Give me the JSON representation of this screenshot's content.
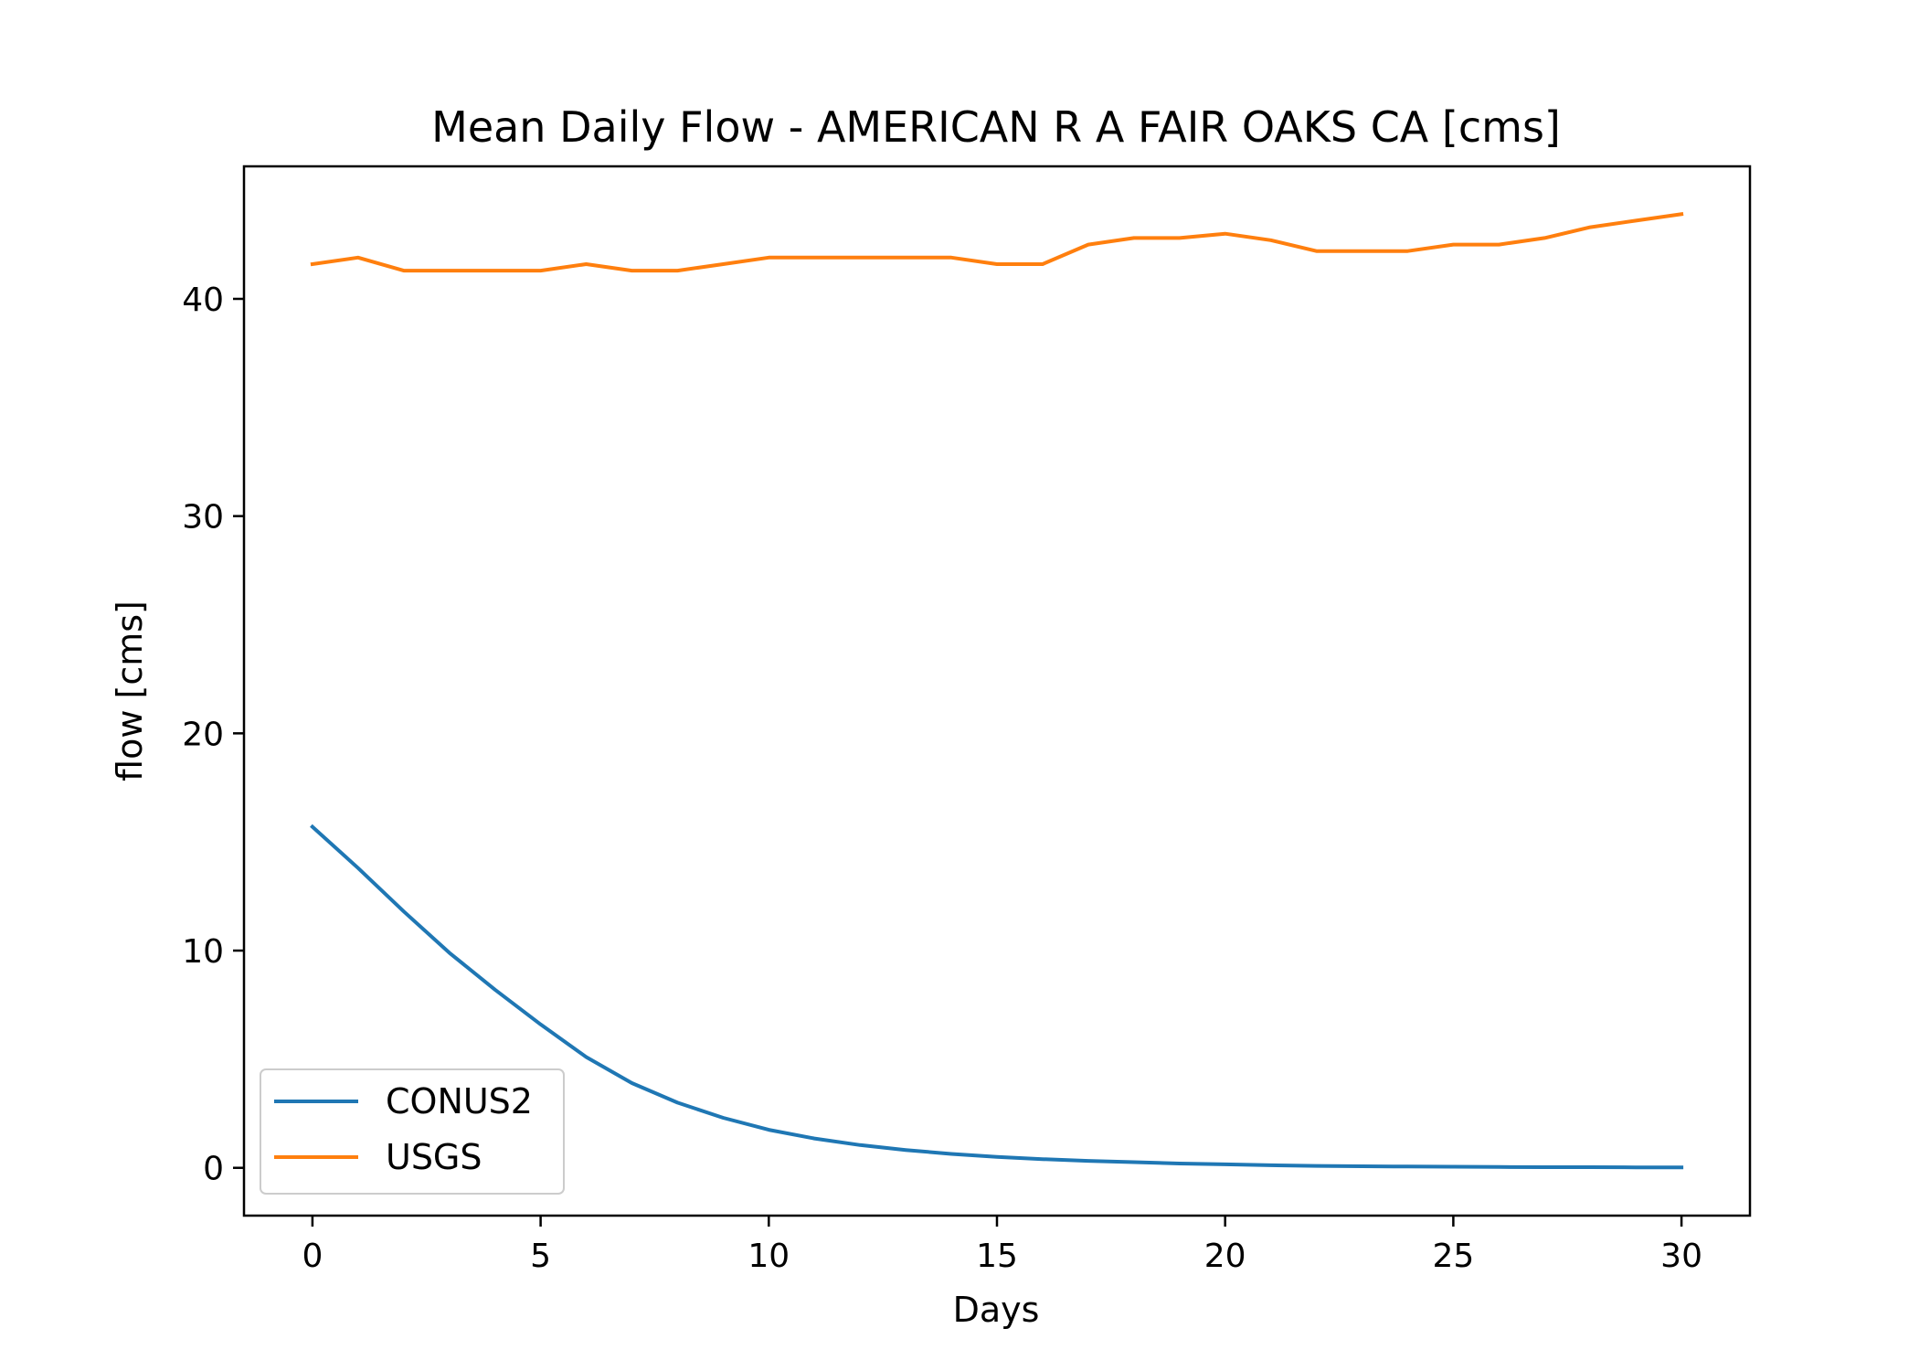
{
  "chart_data": {
    "type": "line",
    "title": "Mean Daily Flow - AMERICAN R A FAIR OAKS CA [cms]",
    "xlabel": "Days",
    "ylabel": "flow [cms]",
    "xlim": [
      -1.5,
      31.5
    ],
    "ylim": [
      -2.2,
      46.1
    ],
    "xticks": [
      0,
      5,
      10,
      15,
      20,
      25,
      30
    ],
    "yticks": [
      0,
      10,
      20,
      30,
      40
    ],
    "grid": false,
    "legend_position": "lower-left",
    "x": [
      0,
      1,
      2,
      3,
      4,
      5,
      6,
      7,
      8,
      9,
      10,
      11,
      12,
      13,
      14,
      15,
      16,
      17,
      18,
      19,
      20,
      21,
      22,
      23,
      24,
      25,
      26,
      27,
      28,
      29,
      30
    ],
    "series": [
      {
        "name": "CONUS2",
        "color": "#1f77b4",
        "values": [
          15.7,
          13.8,
          11.8,
          9.9,
          8.2,
          6.6,
          5.1,
          3.9,
          3.0,
          2.3,
          1.75,
          1.35,
          1.05,
          0.82,
          0.64,
          0.5,
          0.4,
          0.32,
          0.26,
          0.2,
          0.16,
          0.12,
          0.09,
          0.07,
          0.06,
          0.05,
          0.04,
          0.03,
          0.03,
          0.02,
          0.02
        ]
      },
      {
        "name": "USGS",
        "color": "#ff7f0e",
        "values": [
          41.6,
          41.9,
          41.3,
          41.3,
          41.3,
          41.3,
          41.6,
          41.3,
          41.3,
          41.6,
          41.9,
          41.9,
          41.9,
          41.9,
          41.9,
          41.6,
          41.6,
          42.5,
          42.8,
          42.8,
          43.0,
          42.7,
          42.2,
          42.2,
          42.2,
          42.5,
          42.5,
          42.8,
          43.3,
          43.6,
          43.9
        ]
      }
    ]
  }
}
